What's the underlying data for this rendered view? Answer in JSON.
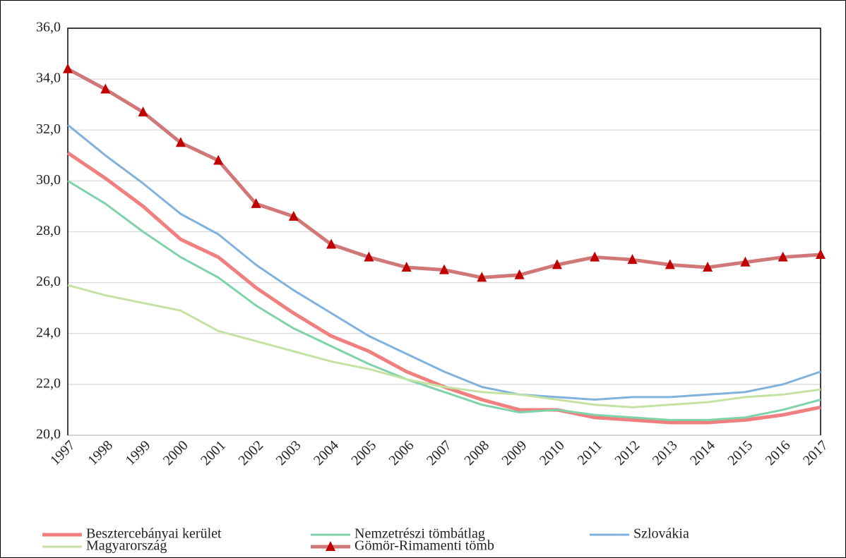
{
  "chart_data": {
    "type": "line",
    "categories": [
      "1997",
      "1998",
      "1999",
      "2000",
      "2001",
      "2002",
      "2003",
      "2004",
      "2005",
      "2006",
      "2007",
      "2008",
      "2009",
      "2010",
      "2011",
      "2012",
      "2013",
      "2014",
      "2015",
      "2016",
      "2017"
    ],
    "ylim": [
      20,
      36
    ],
    "yticks": [
      {
        "value": 20,
        "label": "20,0"
      },
      {
        "value": 22,
        "label": "22,0"
      },
      {
        "value": 24,
        "label": "24,0"
      },
      {
        "value": 26,
        "label": "26,0"
      },
      {
        "value": 28,
        "label": "28,0"
      },
      {
        "value": 30,
        "label": "30,0"
      },
      {
        "value": 32,
        "label": "32,0"
      },
      {
        "value": 34,
        "label": "34,0"
      },
      {
        "value": 36,
        "label": "36,0"
      }
    ],
    "grid": true,
    "legend": "bottom",
    "series": [
      {
        "name": "Besztercebányai kerület",
        "color": "#f07f7f",
        "values": [
          31.1,
          30.1,
          29.0,
          27.7,
          27.0,
          25.8,
          24.8,
          23.9,
          23.3,
          22.5,
          21.9,
          21.4,
          21.0,
          21.0,
          20.7,
          20.6,
          20.5,
          20.5,
          20.6,
          20.8,
          21.1
        ]
      },
      {
        "name": "Nemzetrészi tömbátlag",
        "color": "#7fd3a8",
        "values": [
          30.0,
          29.1,
          28.0,
          27.0,
          26.2,
          25.1,
          24.2,
          23.5,
          22.8,
          22.2,
          21.7,
          21.2,
          20.9,
          21.0,
          20.8,
          20.7,
          20.6,
          20.6,
          20.7,
          21.0,
          21.4
        ]
      },
      {
        "name": "Szlovákia",
        "color": "#7fb2dc",
        "values": [
          32.2,
          31.0,
          29.9,
          28.7,
          27.9,
          26.7,
          25.7,
          24.8,
          23.9,
          23.2,
          22.5,
          21.9,
          21.6,
          21.5,
          21.4,
          21.5,
          21.5,
          21.6,
          21.7,
          22.0,
          22.5
        ]
      },
      {
        "name": "Magyarország",
        "color": "#c4e3a3",
        "values": [
          25.9,
          25.5,
          25.2,
          24.9,
          24.1,
          23.7,
          23.3,
          22.9,
          22.6,
          22.2,
          21.9,
          21.7,
          21.6,
          21.4,
          21.2,
          21.1,
          21.2,
          21.3,
          21.5,
          21.6,
          21.8
        ]
      },
      {
        "name": "Gömör-Rimamenti tömb",
        "color": "#d07878",
        "marker": "triangle",
        "marker_color": "#c00000",
        "values": [
          34.4,
          33.6,
          32.7,
          31.5,
          30.8,
          29.1,
          28.6,
          27.5,
          27.0,
          26.6,
          26.5,
          26.2,
          26.3,
          26.7,
          27.0,
          26.9,
          26.7,
          26.6,
          26.8,
          27.0,
          27.1
        ]
      }
    ]
  }
}
